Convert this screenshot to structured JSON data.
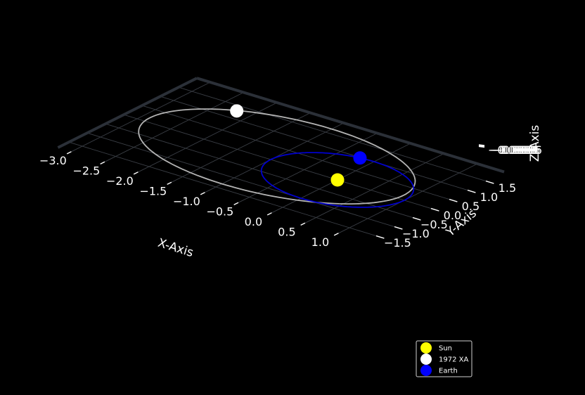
{
  "chart_data": {
    "type": "scatter",
    "projection": "3d",
    "title": "",
    "xlabel": "X-Axis",
    "ylabel": "Y-Axis",
    "zlabel": "Z-Axis",
    "x_ticks": [
      "−3.0",
      "−2.5",
      "−2.0",
      "−1.5",
      "−1.0",
      "−0.5",
      "0.0",
      "0.5",
      "1.0"
    ],
    "y_ticks": [
      "−1.5",
      "−1.0",
      "−0.5",
      "0.0",
      "0.5",
      "1.0",
      "1.5"
    ],
    "z_ticks_overlapping": "−0.0006",
    "xlim": [
      -3.2,
      1.4
    ],
    "ylim": [
      -1.8,
      2.0
    ],
    "background": "#000000",
    "grid": true,
    "legend_position": "lower-right",
    "series": [
      {
        "name": "Sun",
        "color": "#ffff00",
        "points": [
          [
            0,
            0,
            0
          ]
        ]
      },
      {
        "name": "1972 XA",
        "color": "#ffffff",
        "points": [
          [
            -2.22,
            1.3,
            0
          ]
        ]
      },
      {
        "name": "Earth",
        "color": "#0000ff",
        "points": [
          [
            -0.2,
            0.98,
            0
          ]
        ]
      }
    ],
    "orbits": [
      {
        "body": "1972 XA",
        "color": "#b4b4b4",
        "center": [
          -1.0,
          0.17
        ],
        "semi_axes": [
          1.9,
          1.5
        ]
      },
      {
        "body": "Earth",
        "color": "#0000cc",
        "center": [
          0,
          0
        ],
        "semi_axes": [
          1.0,
          1.0
        ]
      }
    ]
  }
}
